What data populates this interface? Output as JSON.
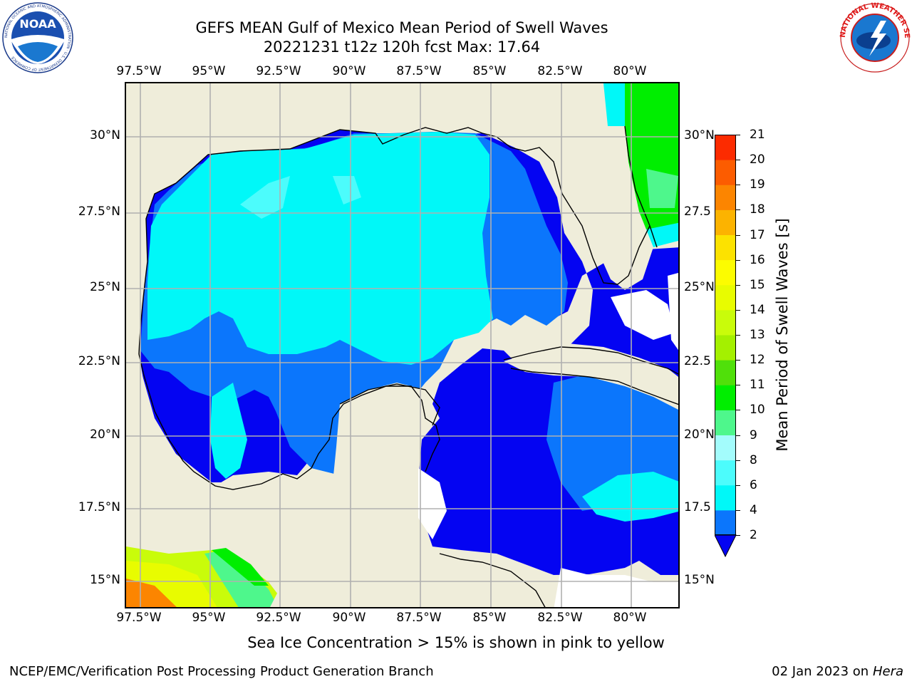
{
  "header": {
    "title_line1": "GEFS MEAN Gulf of Mexico Mean Period of Swell Waves",
    "title_line2": "20221231 t12z 120h fcst   Max: 17.64"
  },
  "map": {
    "lon_labels": [
      "97.5°W",
      "95°W",
      "92.5°W",
      "90°W",
      "87.5°W",
      "85°W",
      "82.5°W",
      "80°W"
    ],
    "lat_labels_left": [
      "30°N",
      "27.5°N",
      "25°N",
      "22.5°N",
      "20°N",
      "17.5°N",
      "15°N"
    ],
    "lat_labels_right": [
      "30°N",
      "27.5",
      "25°N",
      "22.5",
      "20°N",
      "17.5",
      "15°N"
    ],
    "land_color": "#efedda",
    "ocean_colors": {
      "2-4": "#0b76fc",
      "4-6": "#00f8f8",
      "0-2": "#0404f2",
      "6-8": "#4cfcfc",
      "10-11": "#00ee00"
    }
  },
  "colorbar": {
    "label": "Mean Period of Swell Waves [s]",
    "ticks": [
      "2",
      "4",
      "6",
      "8",
      "9",
      "10",
      "11",
      "12",
      "13",
      "14",
      "15",
      "16",
      "17",
      "18",
      "19",
      "20",
      "21"
    ],
    "colors": [
      "#0b76fc",
      "#00f8f8",
      "#4cfcfc",
      "#a3fcfc",
      "#4ef78c",
      "#00ee00",
      "#50e00a",
      "#a4f000",
      "#c9fc0a",
      "#e8fc00",
      "#fcfc00",
      "#fce200",
      "#fcb300",
      "#fc8500",
      "#fc5c00",
      "#fc2b00"
    ],
    "extend_color": "#0404f2"
  },
  "note": "Sea Ice Concentration > 15% is shown in pink to yellow",
  "footer": {
    "left": "NCEP/EMC/Verification Post Processing Product Generation Branch",
    "right_date": "02 Jan 2023 on ",
    "right_machine": "Hera"
  },
  "logos": {
    "left_text": "NOAA",
    "left_ring_text": "NATIONAL OCEANIC AND ATMOSPHERIC ADMINISTRATION · U.S. DEPARTMENT OF COMMERCE",
    "right_ring_text": "NATIONAL WEATHER SERVICE"
  }
}
